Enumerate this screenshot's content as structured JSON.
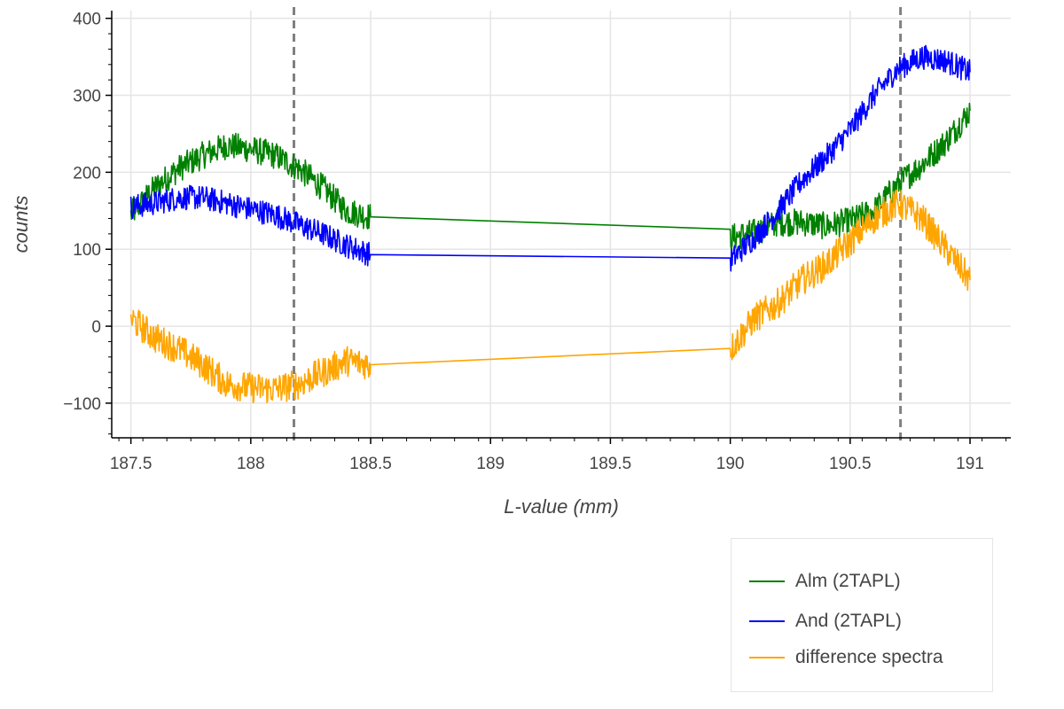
{
  "chart_data": {
    "type": "line",
    "title": "",
    "xlabel": "L-value (mm)",
    "ylabel": "counts",
    "xlim": [
      187.42,
      191.17
    ],
    "ylim": [
      -145,
      410
    ],
    "x_ticks": [
      187.5,
      188,
      188.5,
      189,
      189.5,
      190,
      190.5,
      191
    ],
    "x_tick_labels": [
      "187.5",
      "188",
      "188.5",
      "189",
      "189.5",
      "190",
      "190.5",
      "191"
    ],
    "y_ticks": [
      -100,
      0,
      100,
      200,
      300,
      400
    ],
    "y_tick_labels": [
      "−100",
      "0",
      "100",
      "200",
      "300",
      "400"
    ],
    "grid": true,
    "legend_position": "bottom-right (outside plot)",
    "vertical_reference_lines": [
      188.18,
      190.71
    ],
    "series": [
      {
        "name": "Alm (2TAPL)",
        "color": "#008000",
        "x": [
          187.5,
          187.6,
          187.7,
          187.8,
          187.9,
          188.0,
          188.1,
          188.2,
          188.3,
          188.4,
          188.5,
          190.0,
          190.1,
          190.2,
          190.3,
          190.4,
          190.5,
          190.6,
          190.7,
          190.8,
          190.9,
          191.0
        ],
        "y": [
          145,
          180,
          205,
          222,
          235,
          230,
          222,
          205,
          180,
          150,
          142,
          115,
          122,
          135,
          135,
          130,
          137,
          150,
          185,
          210,
          240,
          280
        ]
      },
      {
        "name": "And (2TAPL)",
        "color": "#0000ff",
        "x": [
          187.5,
          187.6,
          187.7,
          187.8,
          187.9,
          188.0,
          188.1,
          188.2,
          188.3,
          188.4,
          188.5,
          190.0,
          190.1,
          190.2,
          190.3,
          190.4,
          190.5,
          190.6,
          190.7,
          190.8,
          190.9,
          191.0
        ],
        "y": [
          155,
          160,
          167,
          167,
          160,
          152,
          145,
          132,
          120,
          105,
          93,
          85,
          115,
          150,
          190,
          220,
          255,
          300,
          335,
          350,
          345,
          330
        ]
      },
      {
        "name": "difference spectra",
        "color": "#ffa500",
        "x": [
          187.5,
          187.6,
          187.7,
          187.8,
          187.9,
          188.0,
          188.1,
          188.2,
          188.3,
          188.4,
          188.5,
          190.0,
          190.1,
          190.2,
          190.3,
          190.4,
          190.5,
          190.6,
          190.7,
          190.8,
          190.9,
          191.0
        ],
        "y": [
          10,
          -15,
          -30,
          -50,
          -75,
          -80,
          -82,
          -75,
          -60,
          -45,
          -50,
          -30,
          10,
          30,
          60,
          80,
          110,
          140,
          160,
          140,
          100,
          60
        ]
      }
    ]
  }
}
